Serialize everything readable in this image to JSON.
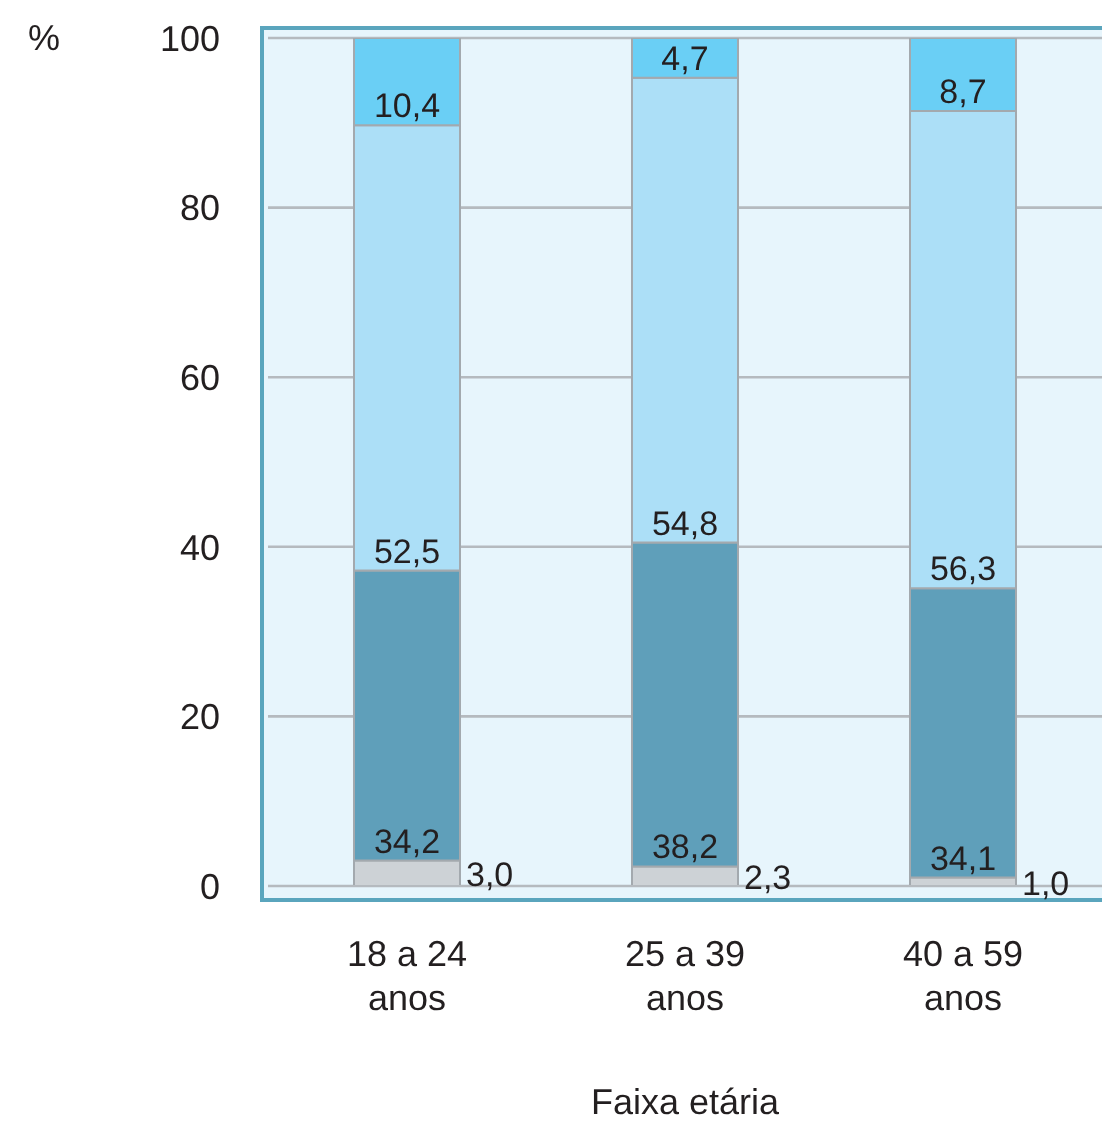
{
  "chart_data": {
    "type": "bar",
    "stacked": true,
    "xlabel": "Faixa etária",
    "ylabel": "%",
    "categories": [
      "18 a 24 anos",
      "25 a 39 anos",
      "40 a 59 anos"
    ],
    "series": [
      {
        "color": "#cdd2d6",
        "values": [
          3.0,
          2.3,
          1.0
        ],
        "value_labels": [
          "3,0",
          "2,3",
          "1,0"
        ]
      },
      {
        "color": "#5f9fba",
        "values": [
          34.2,
          38.2,
          34.1
        ],
        "value_labels": [
          "34,2",
          "38,2",
          "34,1"
        ]
      },
      {
        "color": "#acdff7",
        "values": [
          52.5,
          54.8,
          56.3
        ],
        "value_labels": [
          "52,5",
          "54,8",
          "56,3"
        ]
      },
      {
        "color": "#6acff5",
        "values": [
          10.4,
          4.7,
          8.7
        ],
        "value_labels": [
          "10,4",
          "4,7",
          "8,7"
        ]
      }
    ],
    "ylim": [
      0,
      100
    ],
    "yticks": [
      0,
      20,
      40,
      60,
      80,
      100
    ],
    "grid": "y"
  }
}
